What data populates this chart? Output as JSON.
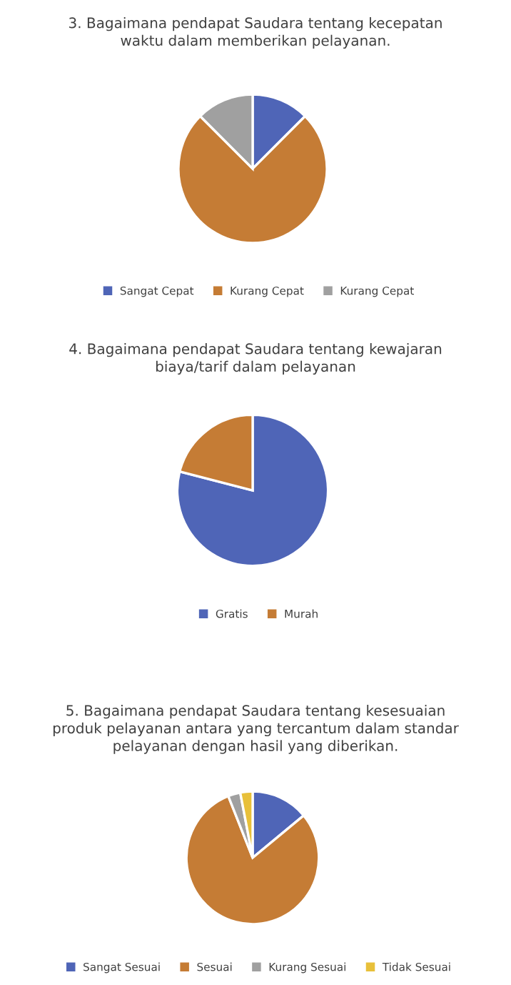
{
  "chart_data": [
    {
      "type": "pie",
      "title": "3. Bagaimana pendapat Saudara tentang kecepatan\nwaktu dalam memberikan pelayanan.",
      "categories": [
        "Sangat Cepat",
        "Kurang Cepat",
        "Kurang Cepat"
      ],
      "values": [
        12.5,
        75,
        12.5
      ],
      "colors": [
        "#4f65b7",
        "#c57c35",
        "#a0a0a0"
      ],
      "legend": "bottom"
    },
    {
      "type": "pie",
      "title": "4. Bagaimana pendapat Saudara tentang kewajaran\nbiaya/tarif dalam pelayanan",
      "categories": [
        "Gratis",
        "Murah"
      ],
      "values": [
        79,
        21
      ],
      "colors": [
        "#4f65b7",
        "#c57c35"
      ],
      "legend": "bottom"
    },
    {
      "type": "pie",
      "title": "5. Bagaimana pendapat Saudara tentang kesesuaian\nproduk pelayanan antara yang tercantum dalam standar\npelayanan dengan hasil yang diberikan.",
      "categories": [
        "Sangat Sesuai",
        "Sesuai",
        "Kurang Sesuai",
        "Tidak Sesuai"
      ],
      "values": [
        14,
        80,
        3,
        3
      ],
      "colors": [
        "#4f65b7",
        "#c57c35",
        "#a0a0a0",
        "#e8c03a"
      ],
      "legend": "bottom"
    }
  ]
}
